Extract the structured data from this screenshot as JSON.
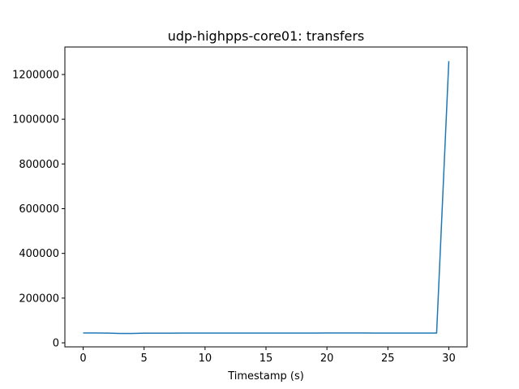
{
  "chart_data": {
    "type": "line",
    "title": "udp-highpps-core01: transfers",
    "xlabel": "Timestamp (s)",
    "ylabel": "",
    "xlim": [
      -1.5,
      31.5
    ],
    "ylim": [
      -18000,
      1323000
    ],
    "x_ticks": [
      0,
      5,
      10,
      15,
      20,
      25,
      30
    ],
    "y_ticks": [
      0,
      200000,
      400000,
      600000,
      800000,
      1000000,
      1200000
    ],
    "grid": false,
    "legend": "none",
    "line_color": "#1f77b4",
    "series": [
      {
        "x": [
          0,
          1,
          2,
          3,
          4,
          5,
          6,
          7,
          8,
          9,
          10,
          11,
          12,
          13,
          14,
          15,
          16,
          17,
          18,
          19,
          20,
          21,
          22,
          23,
          24,
          25,
          26,
          27,
          28,
          29,
          30
        ],
        "values": [
          44000,
          44000,
          43500,
          42000,
          42000,
          43000,
          43000,
          43000,
          43500,
          43500,
          43500,
          43500,
          43500,
          43500,
          43500,
          43500,
          43500,
          43500,
          43500,
          43800,
          44000,
          44000,
          44000,
          44000,
          43800,
          43500,
          43500,
          43500,
          43500,
          43500,
          1260000
        ]
      }
    ]
  }
}
